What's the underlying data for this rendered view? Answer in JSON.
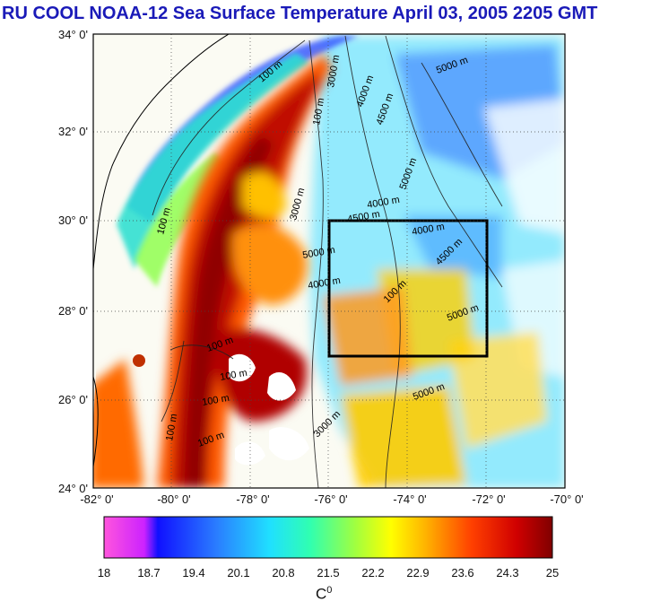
{
  "title": "RU COOL  NOAA-12 Sea Surface Temperature April 03, 2005 2205 GMT",
  "lat_ticks": [
    "34° 0'",
    "32° 0'",
    "30° 0'",
    "28° 0'",
    "26° 0'",
    "24° 0'"
  ],
  "lon_ticks": [
    "-82° 0'",
    "-80° 0'",
    "-78° 0'",
    "-76° 0'",
    "-74° 0'",
    "-72° 0'",
    "-70° 0'"
  ],
  "contour_labels": [
    "100 m",
    "3000 m",
    "4000 m",
    "4500 m",
    "5000 m",
    "100 m",
    "100 m",
    "3000 m",
    "4000 m",
    "4500 m",
    "4000 m",
    "5000 m",
    "4500 m",
    "5000 m",
    "4000 m",
    "5000 m",
    "100 m",
    "100 m",
    "100 m",
    "100 m",
    "100 m",
    "100 m",
    "3000 m",
    "5000 m"
  ],
  "colorbar": {
    "ticks": [
      "18",
      "18.7",
      "19.4",
      "20.1",
      "20.8",
      "21.5",
      "22.2",
      "22.9",
      "23.6",
      "24.3",
      "25"
    ],
    "unit": "C",
    "unit_sup": "0",
    "colors": [
      "#ff33cc",
      "#2020ff",
      "#2a7cff",
      "#22c8ff",
      "#20ffe0",
      "#40ff90",
      "#b0ff30",
      "#ffff00",
      "#ffa000",
      "#ff3000",
      "#a00000"
    ]
  },
  "colors": {
    "title": "#1a1ab8",
    "land": "#fbfbf3",
    "frame": "#000000"
  }
}
